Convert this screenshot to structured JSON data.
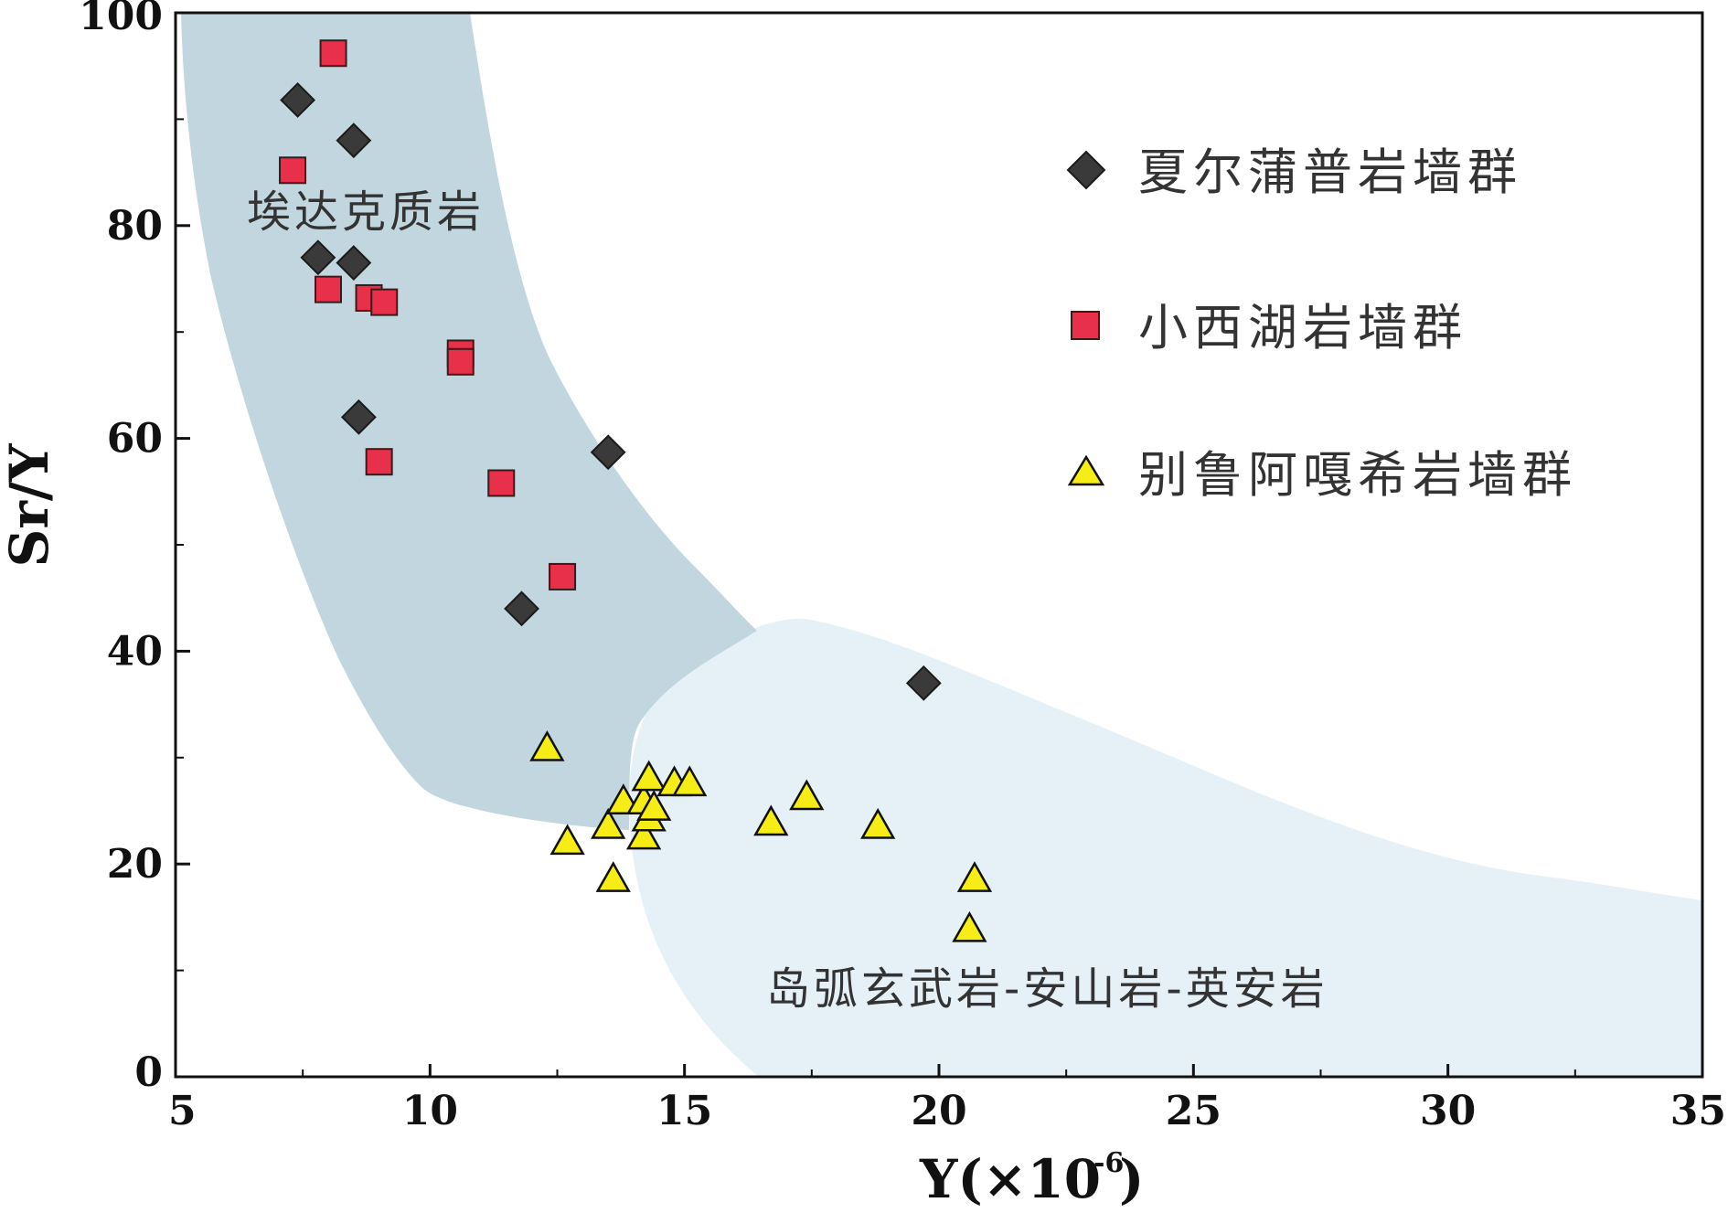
{
  "chart_data": {
    "type": "scatter",
    "xlabel": "Y(×10",
    "xlabel_sup": "-6",
    "xlabel_close": ")",
    "ylabel": "Sr/Y",
    "xlim": [
      5,
      35
    ],
    "ylim": [
      0,
      100
    ],
    "x_ticks": [
      "5",
      "10",
      "15",
      "20",
      "25",
      "30",
      "35"
    ],
    "y_ticks": [
      "0",
      "20",
      "40",
      "60",
      "80",
      "100"
    ],
    "legend_position": "top-right",
    "regions": [
      {
        "label": "埃达克质岩",
        "color": "#c2d6df"
      },
      {
        "label": "岛弧玄武岩-安山岩-英安岩",
        "color": "#e6f1f7"
      }
    ],
    "series": [
      {
        "name": "夏尔蒲普岩墙群",
        "marker": "diamond",
        "color": "#3a3a3a",
        "points": [
          [
            7.4,
            91.8
          ],
          [
            8.5,
            88.0
          ],
          [
            7.8,
            77.0
          ],
          [
            8.5,
            76.5
          ],
          [
            8.6,
            62.0
          ],
          [
            13.5,
            58.7
          ],
          [
            11.8,
            44.0
          ],
          [
            19.7,
            37.0
          ]
        ]
      },
      {
        "name": "小西湖岩墙群",
        "marker": "square",
        "color": "#e8304a",
        "points": [
          [
            8.1,
            96.2
          ],
          [
            7.3,
            85.2
          ],
          [
            8.0,
            74.0
          ],
          [
            8.8,
            73.2
          ],
          [
            9.1,
            72.8
          ],
          [
            10.6,
            68.0
          ],
          [
            10.6,
            67.2
          ],
          [
            9.0,
            57.8
          ],
          [
            11.4,
            55.8
          ],
          [
            12.6,
            47.0
          ]
        ]
      },
      {
        "name": "别鲁阿嘎希岩墙群",
        "marker": "triangle",
        "color": "#f6ec16",
        "points": [
          [
            12.3,
            30.8
          ],
          [
            12.7,
            22.0
          ],
          [
            13.5,
            23.5
          ],
          [
            13.6,
            18.5
          ],
          [
            13.8,
            25.8
          ],
          [
            14.2,
            25.8
          ],
          [
            14.2,
            22.5
          ],
          [
            14.3,
            28.0
          ],
          [
            14.3,
            24.2
          ],
          [
            14.4,
            25.2
          ],
          [
            14.8,
            27.5
          ],
          [
            15.1,
            27.5
          ],
          [
            16.7,
            23.8
          ],
          [
            17.4,
            26.2
          ],
          [
            18.8,
            23.5
          ],
          [
            20.6,
            13.8
          ],
          [
            20.7,
            18.5
          ]
        ]
      }
    ]
  }
}
